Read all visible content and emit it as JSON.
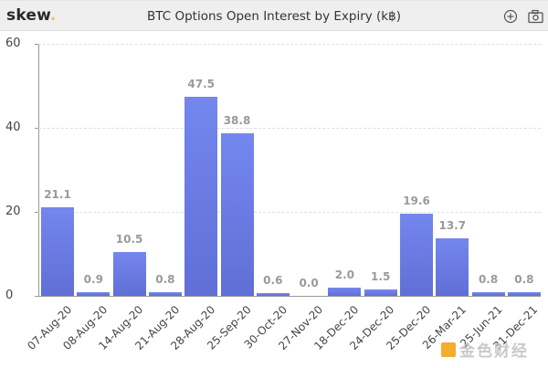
{
  "header": {
    "logo": "skew",
    "logo_dot": ".",
    "title": "BTC Options Open Interest by Expiry (k฿)",
    "icons": [
      "zoom-in-icon",
      "camera-icon"
    ]
  },
  "colors": {
    "bar": "#6a7be4",
    "value_label": "#9a9a9a",
    "axis": "#999999",
    "logo_dot": "#e8c84a"
  },
  "y_ticks": [
    "60",
    "40",
    "20",
    "0"
  ],
  "value_labels": [
    "21.1",
    "0.9",
    "10.5",
    "0.8",
    "47.5",
    "38.8",
    "0.6",
    "0.0",
    "2.0",
    "1.5",
    "19.6",
    "13.7",
    "0.8",
    "0.8"
  ],
  "x_labels": [
    "07-Aug-20",
    "08-Aug-20",
    "14-Aug-20",
    "21-Aug-20",
    "28-Aug-20",
    "25-Sep-20",
    "30-Oct-20",
    "27-Nov-20",
    "18-Dec-20",
    "24-Dec-20",
    "25-Dec-20",
    "26-Mar-21",
    "25-Jun-21",
    "31-Dec-21"
  ],
  "watermark": {
    "text": "金色财经"
  },
  "chart_data": {
    "type": "bar",
    "title": "BTC Options Open Interest by Expiry (k฿)",
    "xlabel": "",
    "ylabel": "",
    "categories": [
      "07-Aug-20",
      "08-Aug-20",
      "14-Aug-20",
      "21-Aug-20",
      "28-Aug-20",
      "25-Sep-20",
      "30-Oct-20",
      "27-Nov-20",
      "18-Dec-20",
      "24-Dec-20",
      "25-Dec-20",
      "26-Mar-21",
      "25-Jun-21",
      "31-Dec-21"
    ],
    "values": [
      21.1,
      0.9,
      10.5,
      0.8,
      47.5,
      38.8,
      0.6,
      0.0,
      2.0,
      1.5,
      19.6,
      13.7,
      0.8,
      0.8
    ],
    "ylim": [
      0,
      60
    ],
    "yticks": [
      0,
      20,
      40,
      60
    ],
    "grid": true,
    "legend": "none",
    "data_labels": true
  }
}
